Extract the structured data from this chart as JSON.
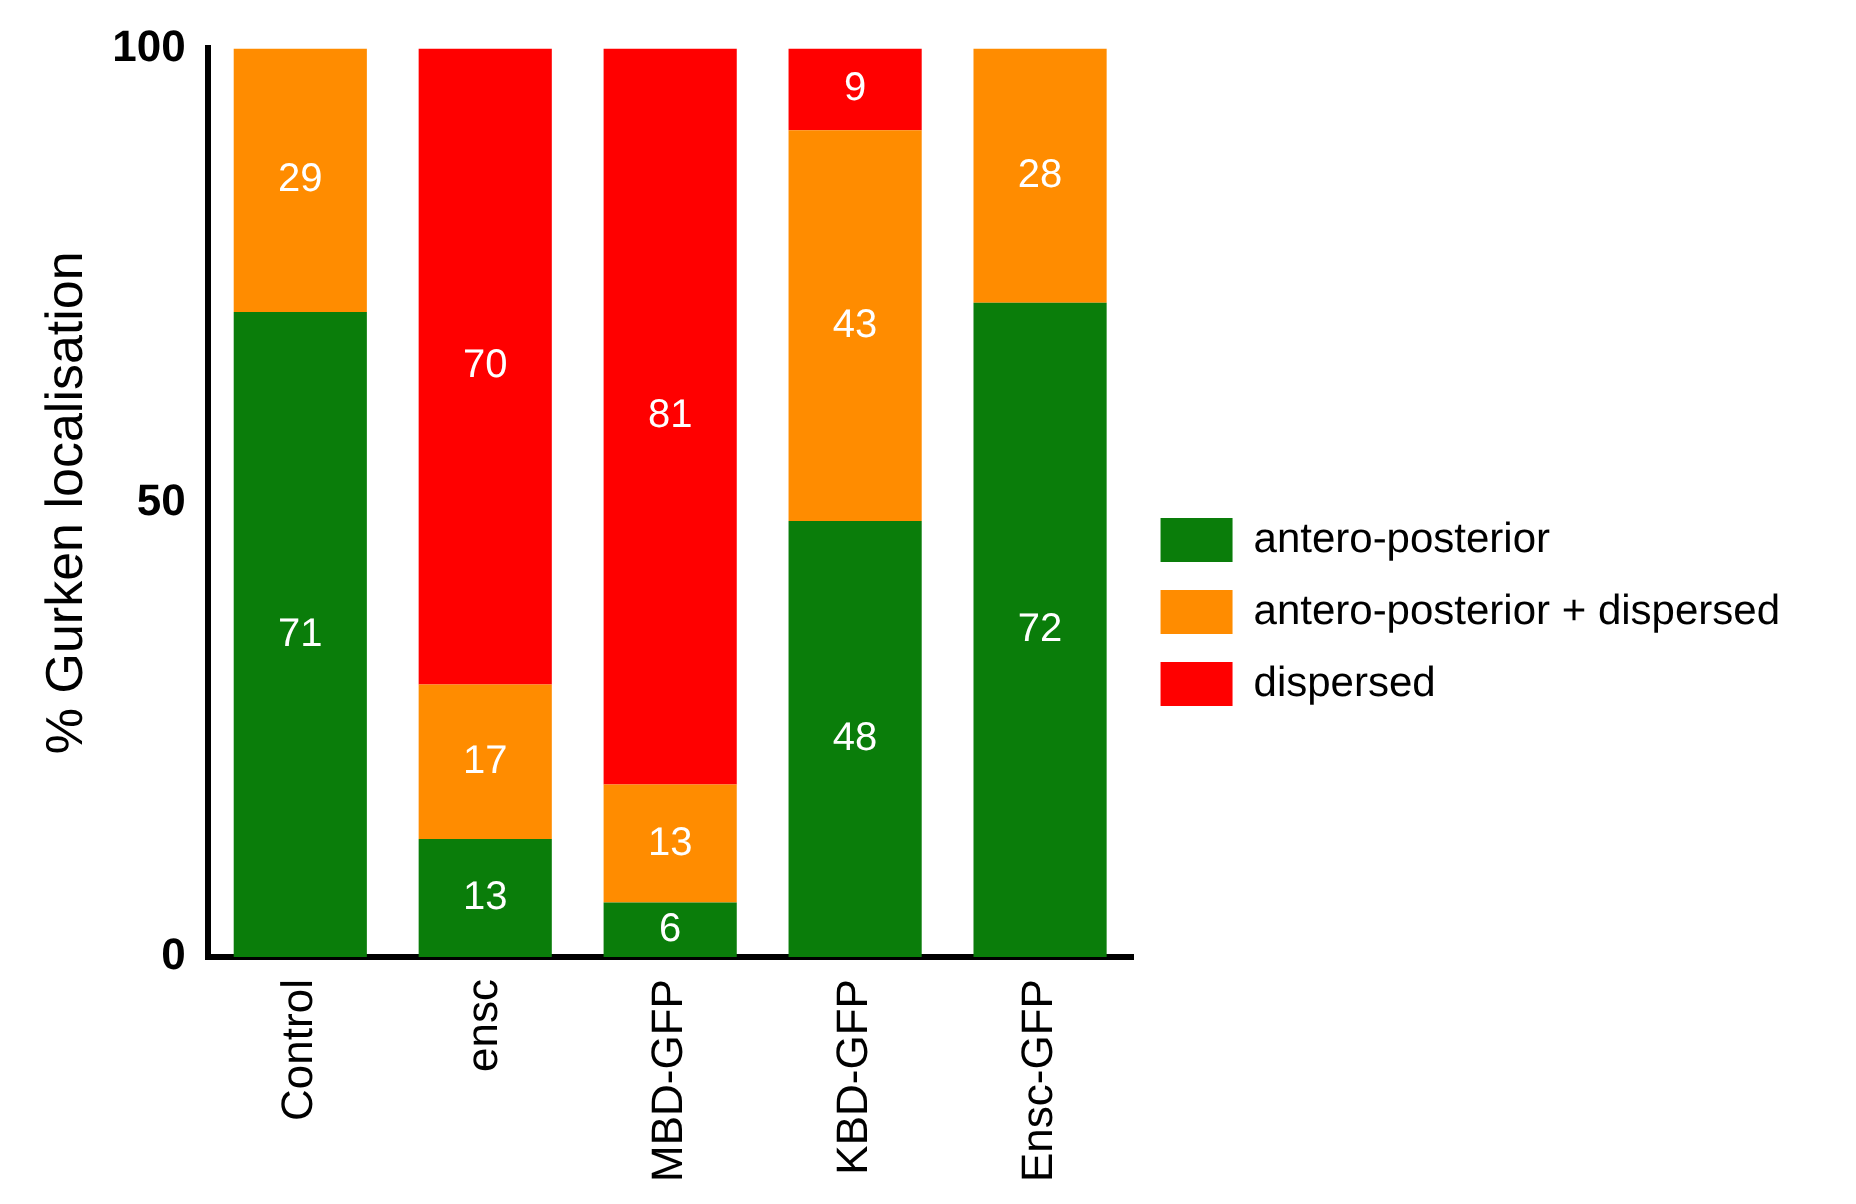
{
  "chart_data": {
    "type": "bar",
    "ylabel": "% Gurken localisation",
    "categories": [
      "Control",
      "ensc",
      "MBD-GFP",
      "KBD-GFP",
      "Ensc-GFP"
    ],
    "stacked": true,
    "series": [
      {
        "name": "antero-posterior",
        "color": "#0a7d0a",
        "values": [
          71,
          13,
          6,
          48,
          72
        ],
        "value_labels": [
          "71",
          "13",
          "6",
          "48",
          "72"
        ]
      },
      {
        "name": "antero-posterior + dispersed",
        "color": "#ff8c00",
        "values": [
          29,
          17,
          13,
          43,
          28
        ],
        "value_labels": [
          "29",
          "17",
          "13",
          "43",
          "28"
        ]
      },
      {
        "name": "dispersed",
        "color": "#ff0000",
        "values": [
          0,
          70,
          81,
          9,
          0
        ],
        "value_labels": [
          null,
          "70",
          "81",
          "9",
          null
        ]
      }
    ],
    "ylim": [
      0,
      100
    ],
    "yticks": [
      0,
      50,
      100
    ],
    "grid": false,
    "legend": "right"
  }
}
